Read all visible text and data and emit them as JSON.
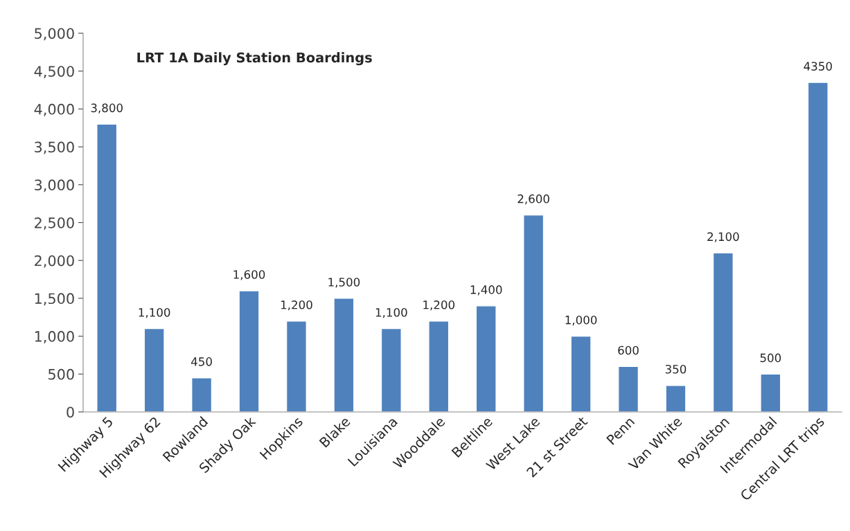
{
  "chart_data": {
    "type": "bar",
    "title": "LRT 1A Daily Station Boardings",
    "categories": [
      "Highway 5",
      "Highway 62",
      "Rowland",
      "Shady Oak",
      "Hopkins",
      "Blake",
      "Louisiana",
      "Wooddale",
      "Beltline",
      "West Lake",
      "21 st Street",
      "Penn",
      "Van White",
      "Royalston",
      "Intermodal",
      "Central LRT trips"
    ],
    "values": [
      3800,
      1100,
      450,
      1600,
      1200,
      1500,
      1100,
      1200,
      1400,
      2600,
      1000,
      600,
      350,
      2100,
      500,
      4350
    ],
    "value_labels": [
      "3,800",
      "1,100",
      "450",
      "1,600",
      "1,200",
      "1,500",
      "1,100",
      "1,200",
      "1,400",
      "2,600",
      "1,000",
      "600",
      "350",
      "2,100",
      "500",
      "4350"
    ],
    "color": "#4f81bd",
    "ylim": [
      0,
      5000
    ],
    "yticks": [
      {
        "value": 0,
        "label": "0"
      },
      {
        "value": 500,
        "label": "500"
      },
      {
        "value": 1000,
        "label": "1,000"
      },
      {
        "value": 1500,
        "label": "1,500"
      },
      {
        "value": 2000,
        "label": "2,000"
      },
      {
        "value": 2500,
        "label": "2,500"
      },
      {
        "value": 3000,
        "label": "3,000"
      },
      {
        "value": 3500,
        "label": "3,500"
      },
      {
        "value": 4000,
        "label": "4,000"
      },
      {
        "value": 4500,
        "label": "4,500"
      },
      {
        "value": 5000,
        "label": "5,000"
      }
    ],
    "grid": false,
    "legend": false
  }
}
